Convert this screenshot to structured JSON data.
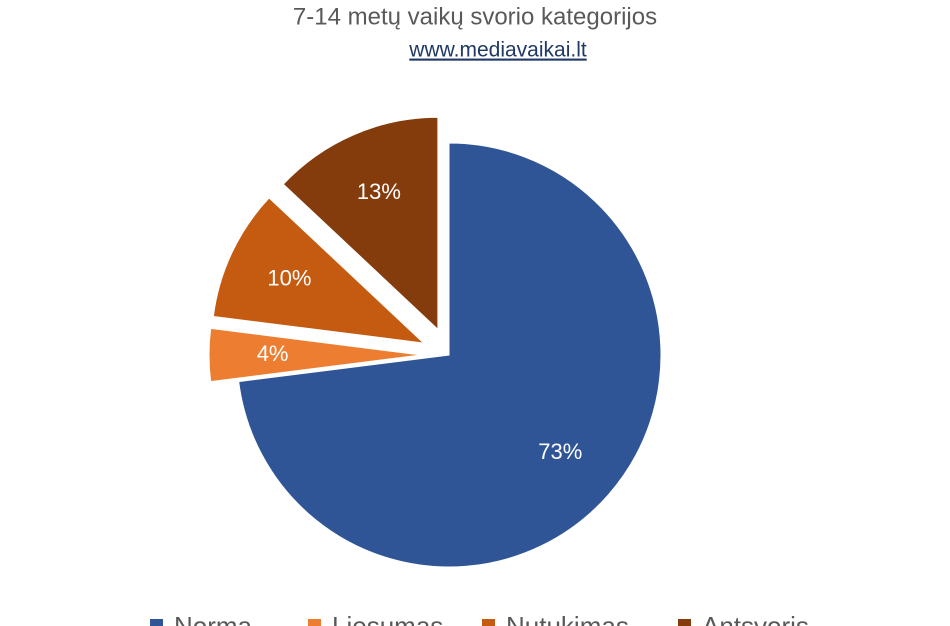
{
  "chart_data": {
    "type": "pie",
    "title": "7-14 metų vaikų svorio kategorijos",
    "subtitle": "www.mediavaikai.lt",
    "categories": [
      "Norma",
      "Liesumas",
      "Nutukimas",
      "Antsvoris"
    ],
    "values": [
      73,
      4,
      10,
      13
    ],
    "value_labels": [
      "73%",
      "4%",
      "10%",
      "13%"
    ],
    "colors": [
      "#2f5597",
      "#ed7d31",
      "#c55a11",
      "#843c0c"
    ],
    "exploded": [
      false,
      true,
      true,
      true
    ],
    "legend": "bottom"
  }
}
